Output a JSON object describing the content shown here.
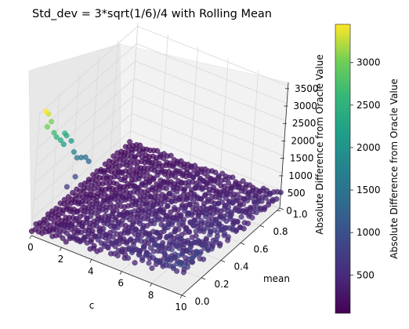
{
  "chart_data": {
    "type": "scatter",
    "title": "Std_dev = 3*sqrt(1/6)/4 with Rolling Mean",
    "xlabel": "c",
    "ylabel": "mean",
    "zlabel": "Absolute Difference from Oracle Value",
    "x_ticks": [
      "0",
      "2",
      "4",
      "6",
      "8",
      "10"
    ],
    "y_ticks": [
      "0.0",
      "0.2",
      "0.4",
      "0.6",
      "0.8",
      "1.0"
    ],
    "z_ticks": [
      "0",
      "500",
      "1000",
      "1500",
      "2000",
      "2500",
      "3000",
      "3500"
    ],
    "xlim": [
      0,
      10
    ],
    "ylim": [
      0,
      1
    ],
    "zlim": [
      0,
      3600
    ],
    "colormap": "viridis",
    "colorbar": {
      "label": "Absolute Difference from Oracle Value",
      "ticks": [
        "500",
        "1000",
        "1500",
        "2000",
        "2500",
        "3000"
      ],
      "range": [
        50,
        3450
      ]
    },
    "grid": true,
    "series": [
      {
        "description": "dense sheet of points near zero across the full c-mean domain",
        "points": [
          {
            "x": 0,
            "y": 0,
            "z": 180
          },
          {
            "x": 10,
            "y": 0,
            "z": 700
          },
          {
            "x": 10,
            "y": 1,
            "z": 350
          },
          {
            "x": 0,
            "y": 1,
            "z": 150
          },
          {
            "x": 5,
            "y": 0.5,
            "z": 300
          }
        ]
      },
      {
        "description": "sparse high-difference outliers at small c and low mean",
        "points": [
          {
            "x": 0.1,
            "y": 0.05,
            "z": 3450
          },
          {
            "x": 0.1,
            "y": 0.08,
            "z": 3300
          },
          {
            "x": 0.2,
            "y": 0.06,
            "z": 3000
          },
          {
            "x": 0.2,
            "y": 0.1,
            "z": 3050
          },
          {
            "x": 0.3,
            "y": 0.12,
            "z": 2700
          },
          {
            "x": 0.3,
            "y": 0.15,
            "z": 2500
          },
          {
            "x": 0.4,
            "y": 0.18,
            "z": 2350
          },
          {
            "x": 0.5,
            "y": 0.2,
            "z": 2200
          },
          {
            "x": 0.4,
            "y": 0.22,
            "z": 2450
          },
          {
            "x": 0.35,
            "y": 0.25,
            "z": 2300
          },
          {
            "x": 0.5,
            "y": 0.28,
            "z": 2100
          },
          {
            "x": 0.6,
            "y": 0.3,
            "z": 1750
          },
          {
            "x": 0.7,
            "y": 0.32,
            "z": 1550
          },
          {
            "x": 0.8,
            "y": 0.35,
            "z": 1500
          },
          {
            "x": 0.9,
            "y": 0.38,
            "z": 1450
          },
          {
            "x": 1.0,
            "y": 0.4,
            "z": 1300
          },
          {
            "x": 0.5,
            "y": 0.35,
            "z": 900
          },
          {
            "x": 0.3,
            "y": 0.3,
            "z": 700
          }
        ]
      }
    ]
  }
}
